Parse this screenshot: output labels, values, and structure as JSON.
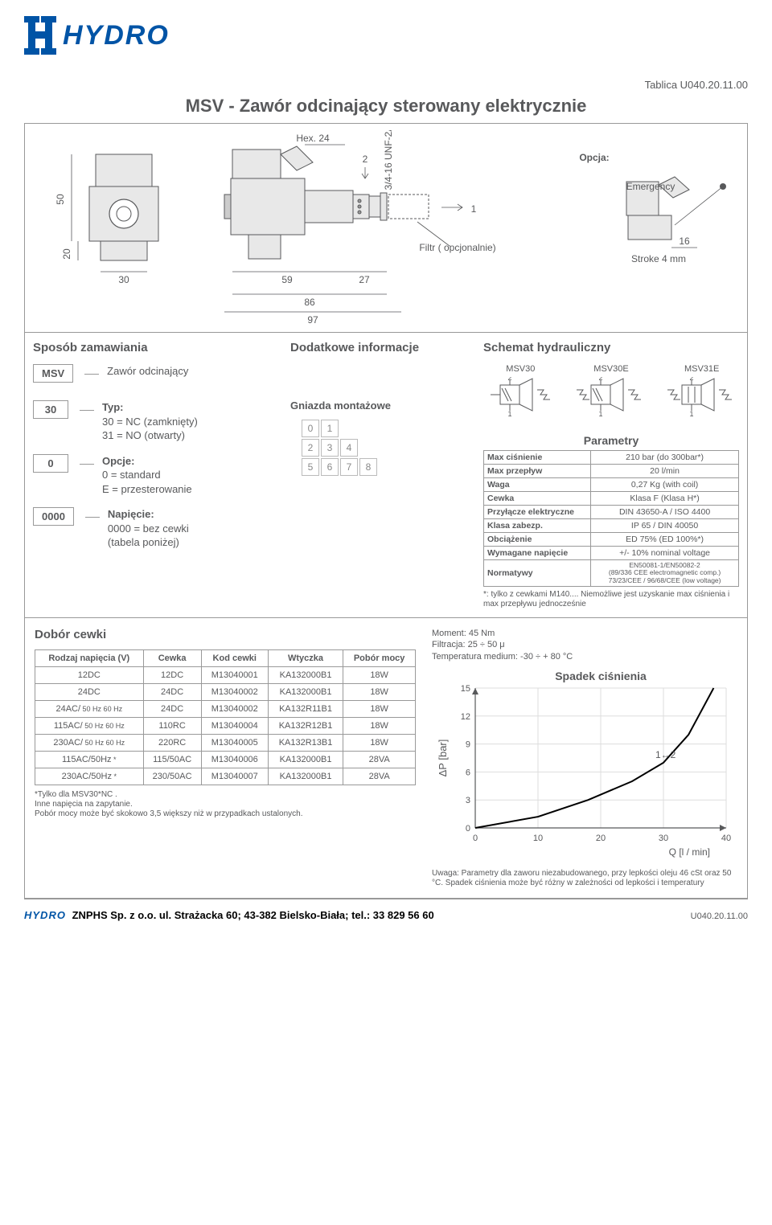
{
  "header": {
    "logo_text": "HYDRO",
    "tablica": "Tablica U040.20.11.00",
    "title": "MSV - Zawór odcinający sterowany elektrycznie"
  },
  "drawing": {
    "hex": "Hex. 24",
    "thread": "3/4-16 UNF-2A",
    "port2": "2",
    "port1": "1",
    "filtr": "Filtr ( opcjonalnie)",
    "opcja": "Opcja:",
    "emergency": "Emergency",
    "stroke": "Stroke 4 mm",
    "d50": "50",
    "d20": "20",
    "d30": "30",
    "d59": "59",
    "d27": "27",
    "d86": "86",
    "d97": "97",
    "d16": "16"
  },
  "ordering": {
    "head": "Sposób zamawiania",
    "msv": "MSV",
    "msv_desc": "Zawór odcinający",
    "c30": "30",
    "typ_label": "Typ:",
    "typ1": "30 = NC (zamknięty)",
    "typ2": "31 = NO (otwarty)",
    "c0": "0",
    "opc_label": "Opcje:",
    "opc1": "0 = standard",
    "opc2": "E = przesterowanie",
    "c0000": "0000",
    "nap_label": "Napięcie:",
    "nap1": "0000 = bez cewki",
    "nap2": "(tabela poniżej)"
  },
  "info": {
    "head": "Dodatkowe informacje",
    "mount_label": "Gniazda montażowe",
    "grid": [
      [
        "0",
        "1",
        "",
        ""
      ],
      [
        "2",
        "3",
        "4",
        ""
      ],
      [
        "5",
        "6",
        "7",
        "8"
      ]
    ]
  },
  "schematic": {
    "head": "Schemat hydrauliczny",
    "v1": "MSV30",
    "v2": "MSV30E",
    "v3": "MSV31E",
    "p1": "1",
    "p2": "2"
  },
  "params": {
    "title": "Parametry",
    "rows": [
      [
        "Max ciśnienie",
        "210 bar (do 300bar*)"
      ],
      [
        "Max przepływ",
        "20 l/min"
      ],
      [
        "Waga",
        "0,27 Kg (with coil)"
      ],
      [
        "Cewka",
        "Klasa F (Klasa H*)"
      ],
      [
        "Przyłącze elektryczne",
        "DIN 43650-A / ISO 4400"
      ],
      [
        "Klasa zabezp.",
        "IP 65 / DIN 40050"
      ],
      [
        "Obciążenie",
        "ED 75% (ED 100%*)"
      ],
      [
        "Wymagane napięcie",
        "+/- 10% nominal voltage"
      ],
      [
        "Normatywy",
        "EN50081-1/EN50082-2\n(89/336 CEE electromagnetic comp.)\n73/23/CEE / 96/68/CEE (low voltage)"
      ]
    ],
    "note": "*: tylko z cewkami M140.... Niemożliwe jest uzyskanie max ciśnienia i max przepływu jednocześnie"
  },
  "coil": {
    "title": "Dobór cewki",
    "headers": [
      "Rodzaj napięcia (V)",
      "Cewka",
      "Kod cewki",
      "Wtyczka",
      "Pobór mocy"
    ],
    "rows": [
      [
        "12DC",
        "12DC",
        "M13040001",
        "KA132000B1",
        "18W"
      ],
      [
        "24DC",
        "24DC",
        "M13040002",
        "KA132000B1",
        "18W"
      ],
      [
        "24AC/ 50 Hz 60 Hz",
        "24DC",
        "M13040002",
        "KA132R11B1",
        "18W"
      ],
      [
        "115AC/ 50 Hz 60 Hz",
        "110RC",
        "M13040004",
        "KA132R12B1",
        "18W"
      ],
      [
        "230AC/ 50 Hz 60 Hz",
        "220RC",
        "M13040005",
        "KA132R13B1",
        "18W"
      ],
      [
        "115AC/50Hz *",
        "115/50AC",
        "M13040006",
        "KA132000B1",
        "28VA"
      ],
      [
        "230AC/50Hz *",
        "230/50AC",
        "M13040007",
        "KA132000B1",
        "28VA"
      ]
    ],
    "notes": "*Tylko dla MSV30*NC .\nInne napięcia na zapytanie.\nPobór mocy może być skokowo 3,5 większy niż w przypadkach ustalonych."
  },
  "chart": {
    "meta1": "Moment: 45 Nm",
    "meta2": "Filtracja: 25 ÷ 50 μ",
    "meta3": "Temperatura medium: -30 ÷ + 80 °C",
    "title": "Spadek ciśnienia",
    "ylabel": "ΔP [bar]",
    "xlabel": "Q [l / min]",
    "yticks": [
      0,
      3,
      6,
      9,
      12,
      15
    ],
    "xticks": [
      0,
      10,
      20,
      30,
      40
    ],
    "curve_label": "1↔2",
    "curve_points": [
      [
        0,
        0
      ],
      [
        10,
        1.2
      ],
      [
        18,
        3
      ],
      [
        25,
        5
      ],
      [
        30,
        7
      ],
      [
        34,
        10
      ],
      [
        38,
        15
      ]
    ],
    "note": "Uwaga: Parametry dla zaworu niezabudowanego, przy lepkości oleju 46 cSt oraz 50 °C. Spadek ciśnienia może być różny w zależności od lepkości i temperatury",
    "line_color": "#000000",
    "grid_color": "#dddddd",
    "bg": "#ffffff"
  },
  "footer": {
    "brand": "HYDRO",
    "text": "ZNPHS Sp. z o.o.  ul. Strażacka 60; 43-382 Bielsko-Biała; tel.: 33 829 56 60",
    "code": "U040.20.11.00"
  }
}
